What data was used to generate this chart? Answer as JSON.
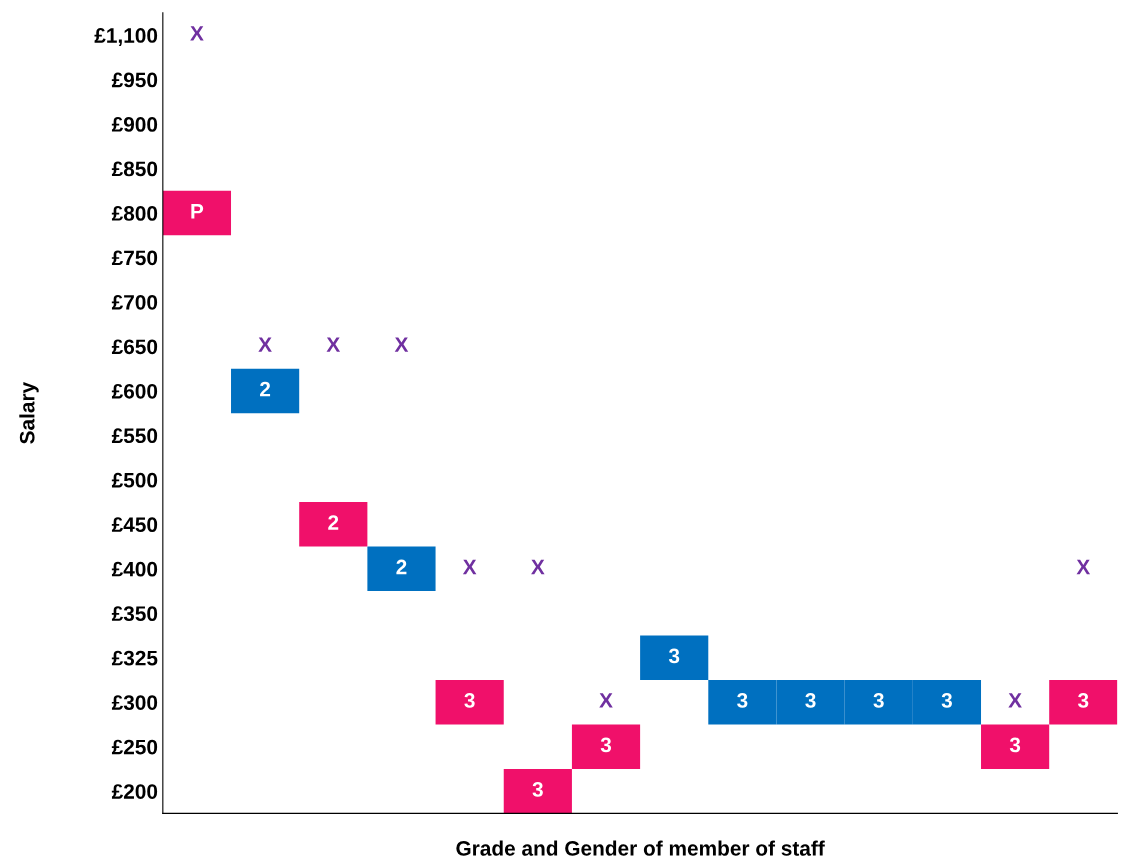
{
  "chart_data": {
    "type": "heatmap",
    "xlabel": "Grade and Gender of member of staff",
    "ylabel": "Salary",
    "color": "#7030a0",
    "categories": [
      null,
      null,
      null,
      null,
      null,
      null,
      null,
      null,
      null,
      null,
      null,
      null,
      null,
      null
    ],
    "y_categories": [
      "£1,100",
      "£950",
      "£900",
      "£850",
      "£800",
      "£750",
      "£700",
      "£650",
      "£600",
      "£550",
      "£500",
      "£450",
      "£400",
      "£350",
      "£325",
      "£300",
      "£250",
      "£200"
    ],
    "cells": [
      [
        null,
        null,
        null,
        null,
        null,
        null,
        null,
        null,
        null,
        null,
        null,
        null,
        null,
        null
      ],
      [
        null,
        null,
        null,
        null,
        null,
        null,
        null,
        null,
        null,
        null,
        null,
        null,
        null,
        null
      ],
      [
        null,
        null,
        null,
        null,
        null,
        null,
        null,
        null,
        null,
        null,
        null,
        null,
        null,
        null
      ],
      [
        null,
        null,
        null,
        null,
        null,
        null,
        null,
        null,
        null,
        null,
        null,
        null,
        null,
        null
      ],
      [
        null,
        null,
        null,
        null,
        null,
        null,
        null,
        null,
        null,
        null,
        null,
        null,
        null,
        null
      ],
      [
        null,
        null,
        null,
        null,
        null,
        null,
        null,
        null,
        null,
        null,
        null,
        null,
        null,
        null
      ],
      [
        null,
        null,
        null,
        null,
        null,
        null,
        null,
        null,
        null,
        null,
        null,
        null,
        null,
        null
      ],
      [
        null,
        null,
        null,
        null,
        null,
        null,
        null,
        null,
        null,
        null,
        null,
        null,
        null,
        null
      ],
      [
        null,
        2,
        null,
        null,
        null,
        null,
        null,
        null,
        null,
        null,
        null,
        null,
        null,
        null
      ],
      [
        null,
        null,
        null,
        null,
        null,
        null,
        null,
        null,
        null,
        null,
        null,
        null,
        null,
        null
      ],
      [
        null,
        null,
        null,
        null,
        null,
        null,
        null,
        null,
        null,
        null,
        null,
        null,
        null,
        null
      ],
      [
        null,
        null,
        2,
        null,
        null,
        null,
        null,
        null,
        null,
        null,
        null,
        null,
        null,
        null
      ],
      [
        null,
        null,
        null,
        2,
        null,
        null,
        null,
        null,
        null,
        null,
        null,
        null,
        null,
        null
      ],
      [
        null,
        null,
        null,
        null,
        null,
        null,
        null,
        null,
        null,
        null,
        null,
        null,
        null,
        null
      ],
      [
        null,
        null,
        null,
        null,
        null,
        null,
        null,
        3,
        null,
        null,
        null,
        null,
        null,
        null
      ],
      [
        null,
        null,
        null,
        null,
        3,
        null,
        null,
        null,
        3,
        3,
        3,
        3,
        null,
        3
      ],
      [
        null,
        null,
        null,
        null,
        null,
        null,
        3,
        null,
        null,
        null,
        null,
        null,
        3,
        null
      ],
      [
        null,
        null,
        null,
        null,
        null,
        3,
        null,
        null,
        null,
        null,
        null,
        null,
        null,
        null
      ]
    ],
    "cell_labels": [
      [
        "X",
        null,
        null,
        null,
        null,
        null,
        null,
        null,
        null,
        null,
        null,
        null,
        null,
        null
      ],
      [
        null,
        null,
        null,
        null,
        null,
        null,
        null,
        null,
        null,
        null,
        null,
        null,
        null,
        null
      ],
      [
        null,
        null,
        null,
        null,
        null,
        null,
        null,
        null,
        null,
        null,
        null,
        null,
        null,
        null
      ],
      [
        null,
        null,
        null,
        null,
        null,
        null,
        null,
        null,
        null,
        null,
        null,
        null,
        null,
        null
      ],
      [
        "P",
        null,
        null,
        null,
        null,
        null,
        null,
        null,
        null,
        null,
        null,
        null,
        null,
        null
      ],
      [
        null,
        null,
        null,
        null,
        null,
        null,
        null,
        null,
        null,
        null,
        null,
        null,
        null,
        null
      ],
      [
        null,
        null,
        null,
        null,
        null,
        null,
        null,
        null,
        null,
        null,
        null,
        null,
        null,
        null
      ],
      [
        null,
        "X",
        "X",
        "X",
        null,
        null,
        null,
        null,
        null,
        null,
        null,
        null,
        null,
        null
      ],
      [
        null,
        "2",
        null,
        null,
        null,
        null,
        null,
        null,
        null,
        null,
        null,
        null,
        null,
        null
      ],
      [
        null,
        null,
        null,
        null,
        null,
        null,
        null,
        null,
        null,
        null,
        null,
        null,
        null,
        null
      ],
      [
        null,
        null,
        null,
        null,
        null,
        null,
        null,
        null,
        null,
        null,
        null,
        null,
        null,
        null
      ],
      [
        null,
        null,
        "2",
        null,
        null,
        null,
        null,
        null,
        null,
        null,
        null,
        null,
        null,
        null
      ],
      [
        null,
        null,
        null,
        "2",
        "X",
        "X",
        null,
        null,
        null,
        null,
        null,
        null,
        null,
        "X"
      ],
      [
        null,
        null,
        null,
        null,
        null,
        null,
        null,
        null,
        null,
        null,
        null,
        null,
        null,
        null
      ],
      [
        null,
        null,
        null,
        null,
        null,
        null,
        null,
        "3",
        null,
        null,
        null,
        null,
        null,
        null
      ],
      [
        null,
        null,
        null,
        null,
        "3",
        null,
        "X",
        null,
        "3",
        "3",
        "3",
        "3",
        "X",
        "3"
      ],
      [
        null,
        null,
        null,
        null,
        null,
        null,
        "3",
        null,
        null,
        null,
        null,
        null,
        "3",
        null
      ],
      [
        null,
        null,
        null,
        null,
        null,
        "3",
        null,
        null,
        null,
        null,
        null,
        null,
        null,
        null
      ]
    ],
    "colors": [
      [
        null,
        null,
        null,
        null,
        null,
        null,
        null,
        null,
        null,
        null,
        null,
        null,
        null,
        null
      ],
      [
        null,
        null,
        null,
        null,
        null,
        null,
        null,
        null,
        null,
        null,
        null,
        null,
        null,
        null
      ],
      [
        null,
        null,
        null,
        null,
        null,
        null,
        null,
        null,
        null,
        null,
        null,
        null,
        null,
        null
      ],
      [
        null,
        null,
        null,
        null,
        null,
        null,
        null,
        null,
        null,
        null,
        null,
        null,
        null,
        null
      ],
      [
        "#f0106a",
        null,
        null,
        null,
        null,
        null,
        null,
        null,
        null,
        null,
        null,
        null,
        null,
        null
      ],
      [
        null,
        null,
        null,
        null,
        null,
        null,
        null,
        null,
        null,
        null,
        null,
        null,
        null,
        null
      ],
      [
        null,
        null,
        null,
        null,
        null,
        null,
        null,
        null,
        null,
        null,
        null,
        null,
        null,
        null
      ],
      [
        null,
        null,
        null,
        null,
        null,
        null,
        null,
        null,
        null,
        null,
        null,
        null,
        null,
        null
      ],
      [
        null,
        "#0070c0",
        null,
        null,
        null,
        null,
        null,
        null,
        null,
        null,
        null,
        null,
        null,
        null
      ],
      [
        null,
        null,
        null,
        null,
        null,
        null,
        null,
        null,
        null,
        null,
        null,
        null,
        null,
        null
      ],
      [
        null,
        null,
        null,
        null,
        null,
        null,
        null,
        null,
        null,
        null,
        null,
        null,
        null,
        null
      ],
      [
        null,
        null,
        "#f0106a",
        null,
        null,
        null,
        null,
        null,
        null,
        null,
        null,
        null,
        null,
        null
      ],
      [
        null,
        null,
        null,
        "#0070c0",
        null,
        null,
        null,
        null,
        null,
        null,
        null,
        null,
        null,
        null
      ],
      [
        null,
        null,
        null,
        null,
        null,
        null,
        null,
        null,
        null,
        null,
        null,
        null,
        null,
        null
      ],
      [
        null,
        null,
        null,
        null,
        null,
        null,
        null,
        "#0070c0",
        null,
        null,
        null,
        null,
        null,
        null
      ],
      [
        null,
        null,
        null,
        null,
        "#f0106a",
        null,
        null,
        null,
        "#0070c0",
        "#0070c0",
        "#0070c0",
        "#0070c0",
        null,
        "#f0106a"
      ],
      [
        null,
        null,
        null,
        null,
        null,
        null,
        "#f0106a",
        null,
        null,
        null,
        null,
        null,
        "#f0106a",
        null
      ],
      [
        null,
        null,
        null,
        null,
        null,
        "#f0106a",
        null,
        null,
        null,
        null,
        null,
        null,
        null,
        null
      ]
    ]
  }
}
